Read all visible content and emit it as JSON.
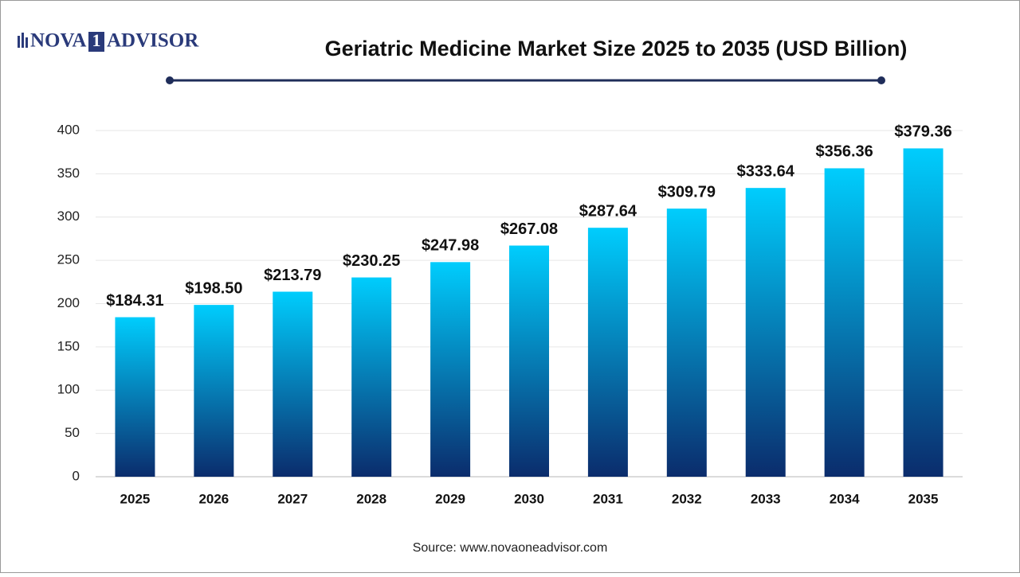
{
  "chart_data": {
    "type": "bar",
    "logo": [
      "NOVA",
      "1",
      "ADVISOR"
    ],
    "title": "Geriatric Medicine Market Size 2025 to 2035 (USD Billion)",
    "source": "Source: www.novaoneadvisor.com",
    "categories": [
      "2025",
      "2026",
      "2027",
      "2028",
      "2029",
      "2030",
      "2031",
      "2032",
      "2033",
      "2034",
      "2035"
    ],
    "values": [
      184.31,
      198.5,
      213.79,
      230.25,
      247.98,
      267.08,
      287.64,
      309.79,
      333.64,
      356.36,
      379.36
    ],
    "value_labels": [
      "$184.31",
      "$198.50",
      "$213.79",
      "$230.25",
      "$247.98",
      "$267.08",
      "$287.64",
      "$309.79",
      "$333.64",
      "$356.36",
      "$379.36"
    ],
    "color": [
      "#00cdfd",
      "#0b2c6c"
    ],
    "ylim": [
      0,
      400
    ],
    "yticks": [
      0,
      50,
      100,
      150,
      200,
      250,
      300,
      350,
      400
    ],
    "grid": true
  }
}
